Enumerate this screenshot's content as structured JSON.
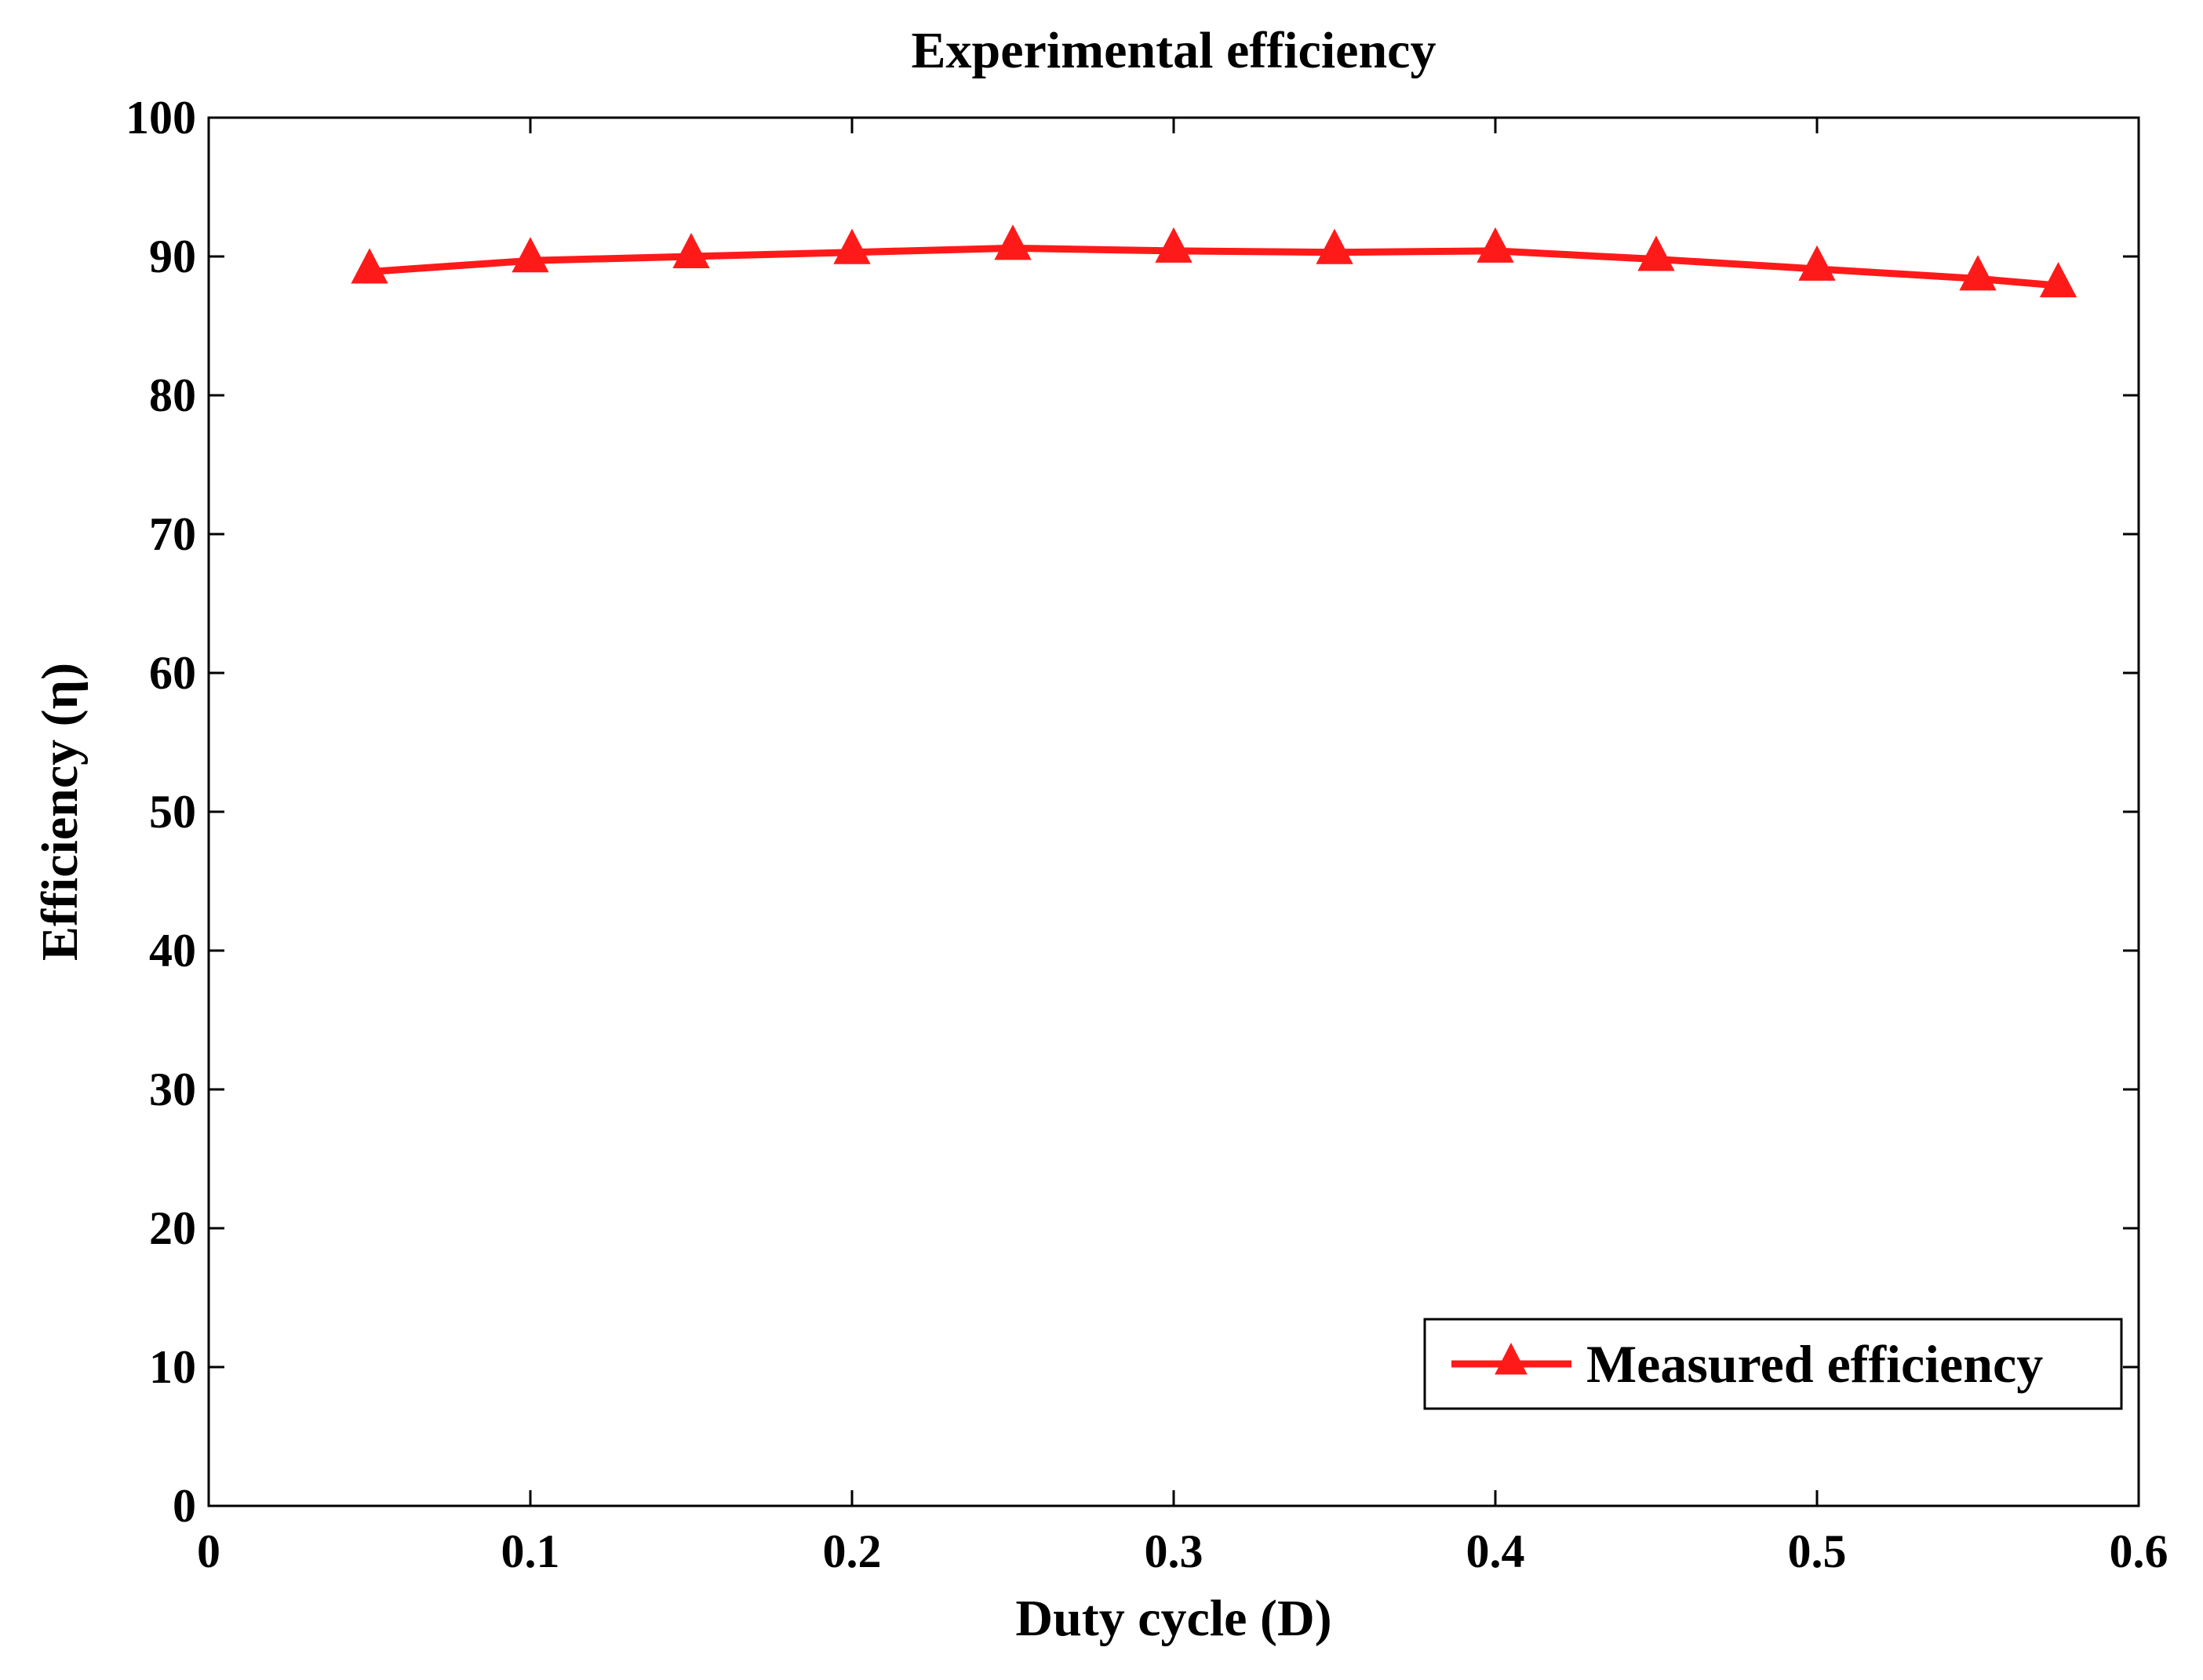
{
  "chart_data": {
    "type": "line",
    "title": "Experimental efficiency",
    "xlabel": "Duty cycle (D)",
    "ylabel": "Efficiency (η)",
    "xlim": [
      0,
      0.6
    ],
    "ylim": [
      0,
      100
    ],
    "xticks": [
      0,
      0.1,
      0.2,
      0.3,
      0.4,
      0.5,
      0.6
    ],
    "xtick_labels": [
      "0",
      "0.1",
      "0.2",
      "0.3",
      "0.4",
      "0.5",
      "0.6"
    ],
    "yticks": [
      0,
      10,
      20,
      30,
      40,
      50,
      60,
      70,
      80,
      90,
      100
    ],
    "ytick_labels": [
      "0",
      "10",
      "20",
      "30",
      "40",
      "50",
      "60",
      "70",
      "80",
      "90",
      "100"
    ],
    "grid": false,
    "legend_position": "bottom-right",
    "series": [
      {
        "name": "Measured efficiency",
        "color": "#ff1a1a",
        "marker": "triangle",
        "x": [
          0.05,
          0.1,
          0.15,
          0.2,
          0.25,
          0.3,
          0.35,
          0.4,
          0.45,
          0.5,
          0.55,
          0.575
        ],
        "y": [
          88.9,
          89.7,
          90.0,
          90.3,
          90.6,
          90.4,
          90.3,
          90.4,
          89.8,
          89.1,
          88.4,
          87.9
        ]
      }
    ]
  }
}
